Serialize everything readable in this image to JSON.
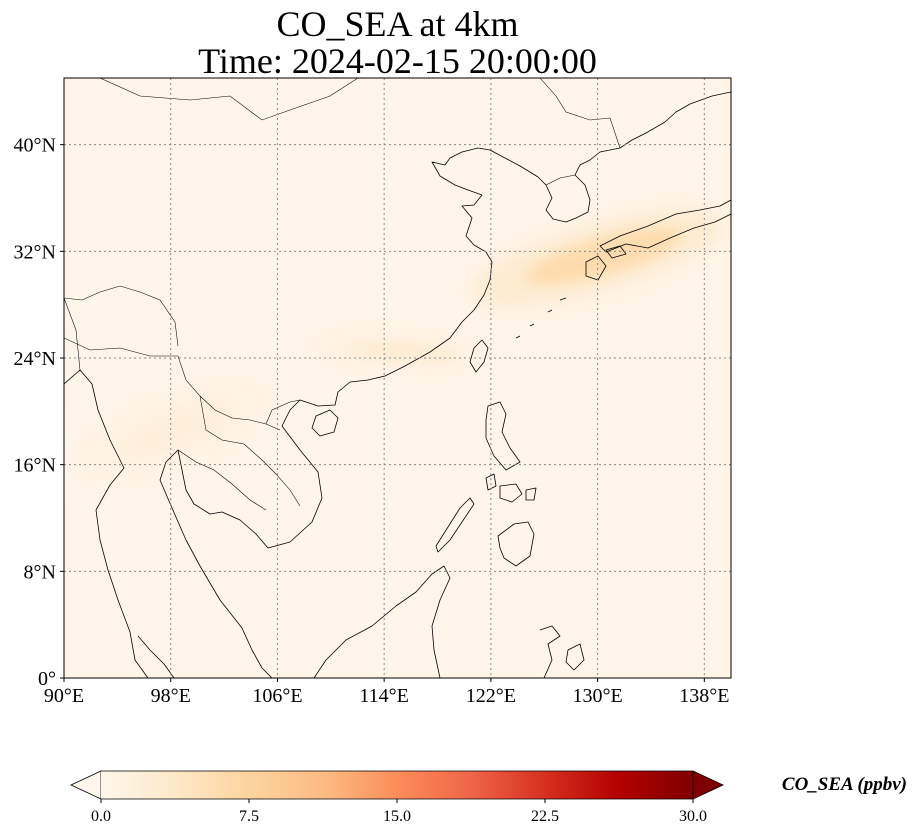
{
  "title_line1": "CO_SEA at 4km",
  "title_line2": "Time: 2024-02-15 20:00:00",
  "chart_data": {
    "type": "heatmap",
    "variable": "CO_SEA",
    "units": "ppbv",
    "xlim": [
      90,
      140
    ],
    "ylim": [
      0,
      45
    ],
    "x_ticks": [
      90,
      98,
      106,
      114,
      122,
      130,
      138
    ],
    "x_tick_labels": [
      "90°E",
      "98°E",
      "106°E",
      "114°E",
      "122°E",
      "130°E",
      "138°E"
    ],
    "y_ticks": [
      0,
      8,
      16,
      24,
      32,
      40
    ],
    "y_tick_labels": [
      "0°",
      "8°N",
      "16°N",
      "24°N",
      "32°N",
      "40°N"
    ],
    "grid": "dotted",
    "colormap": "OrRd",
    "colorbar": {
      "min": 0,
      "max": 30,
      "ticks": [
        0,
        7.5,
        15,
        22.5,
        30
      ],
      "tick_labels": [
        "0.0",
        "7.5",
        "15.0",
        "22.5",
        "30.0"
      ],
      "label": "CO_SEA (ppbv)",
      "extend": "both",
      "colors": [
        "#fff7ec",
        "#fee8c8",
        "#fdd49e",
        "#fdbb84",
        "#fc8d59",
        "#ef6548",
        "#d7301f",
        "#b30000",
        "#7f0000"
      ]
    },
    "plumes": [
      {
        "region": "East China Sea to Japan",
        "lon": [
          120,
          140
        ],
        "lat": [
          27,
          36
        ],
        "peak_value": 7
      },
      {
        "region": "South China coast",
        "lon": [
          108,
          122
        ],
        "lat": [
          22,
          27
        ],
        "peak_value": 3
      },
      {
        "region": "Indochina band",
        "lon": [
          90,
          106
        ],
        "lat": [
          13,
          24
        ],
        "peak_value": 2
      }
    ]
  }
}
